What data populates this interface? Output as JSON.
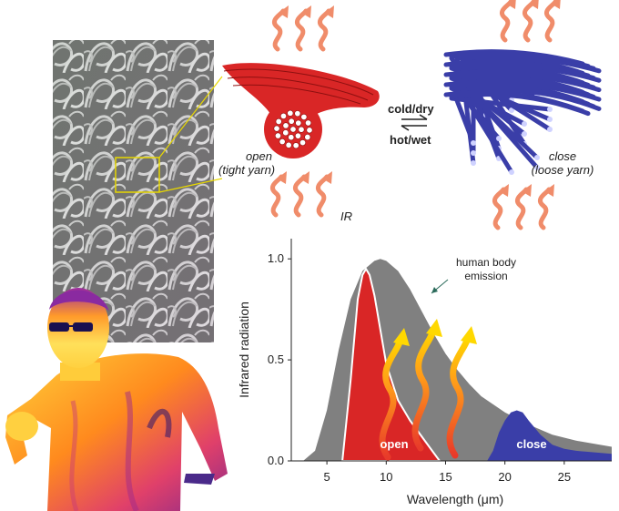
{
  "labels": {
    "open_state": "open",
    "tight_yarn": "(tight yarn)",
    "close_state": "close",
    "loose_yarn": "(loose yarn)",
    "cold_dry": "cold/dry",
    "hot_wet": "hot/wet",
    "ir": "IR",
    "body_emission_line1": "human body",
    "body_emission_line2": "emission"
  },
  "colors": {
    "open_yarn": "#d92626",
    "close_yarn": "#3a3ea8",
    "body_curve": "#808080",
    "ir_arrow": "#f08c6a",
    "callout": "#e8d800"
  },
  "chart_data": {
    "type": "area",
    "xlabel": "Wavelength (μm)",
    "ylabel": "Infrared radiation",
    "xlim": [
      2,
      29
    ],
    "ylim": [
      0,
      1.1
    ],
    "x_ticks": [
      5,
      10,
      15,
      20,
      25
    ],
    "y_ticks": [
      0.0,
      0.5,
      1.0
    ],
    "y_tick_labels": [
      "0.0",
      "0.5",
      "1.0"
    ],
    "series": [
      {
        "name": "human body emission",
        "x": [
          3,
          4,
          5,
          6,
          7,
          8,
          9,
          9.5,
          10,
          11,
          12,
          13,
          14,
          15,
          16,
          17,
          18,
          20,
          22,
          24,
          26,
          29
        ],
        "values": [
          0.0,
          0.05,
          0.25,
          0.55,
          0.8,
          0.94,
          0.99,
          1.0,
          0.99,
          0.94,
          0.85,
          0.74,
          0.63,
          0.53,
          0.45,
          0.38,
          0.32,
          0.24,
          0.18,
          0.13,
          0.1,
          0.07
        ]
      },
      {
        "name": "open",
        "x": [
          6.3,
          7,
          7.6,
          8,
          8.3,
          8.6,
          9,
          9.5,
          10,
          11,
          12,
          13,
          14,
          14.5
        ],
        "values": [
          0.0,
          0.4,
          0.8,
          0.92,
          0.95,
          0.92,
          0.82,
          0.65,
          0.48,
          0.3,
          0.2,
          0.12,
          0.04,
          0.0
        ]
      },
      {
        "name": "close",
        "x": [
          18.5,
          19,
          19.5,
          20,
          20.5,
          21,
          21.5,
          22,
          23,
          24,
          25,
          26,
          27,
          28,
          29
        ],
        "values": [
          0.0,
          0.05,
          0.14,
          0.2,
          0.24,
          0.25,
          0.24,
          0.2,
          0.13,
          0.08,
          0.06,
          0.05,
          0.045,
          0.04,
          0.035
        ]
      }
    ]
  }
}
